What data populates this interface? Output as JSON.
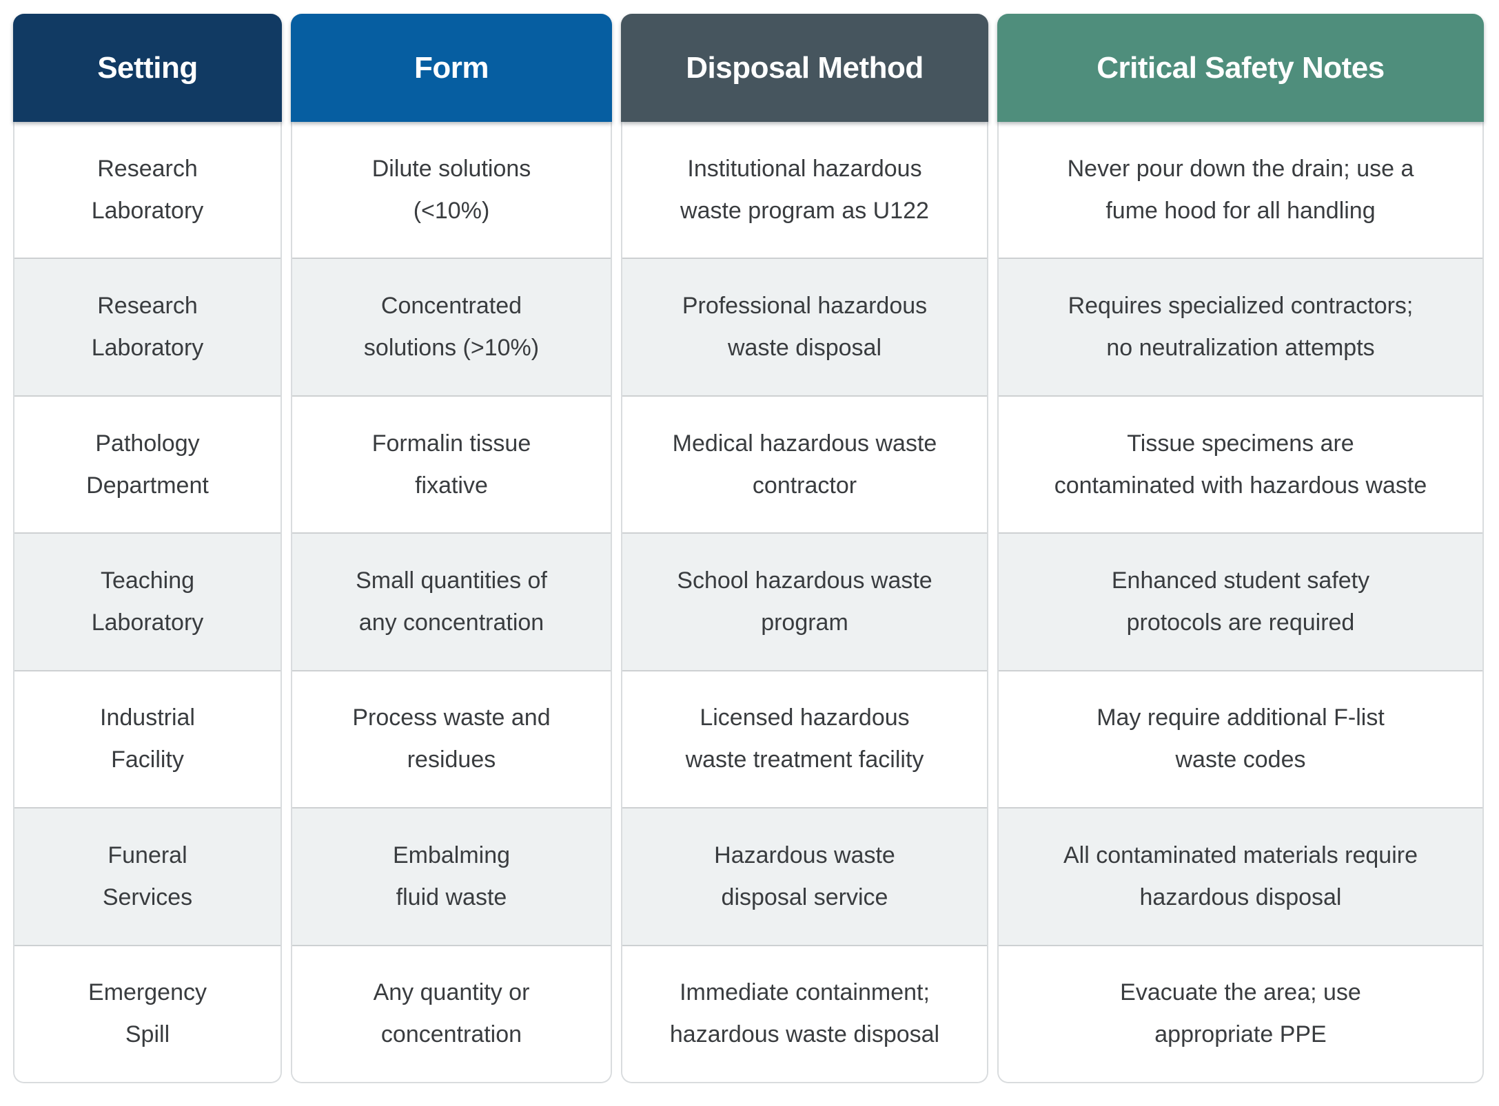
{
  "table": {
    "columns": [
      {
        "id": "setting",
        "header": "Setting",
        "header_bg": "#113a63",
        "cells": [
          "Research\nLaboratory",
          "Research\nLaboratory",
          "Pathology\nDepartment",
          "Teaching\nLaboratory",
          "Industrial\nFacility",
          "Funeral\nServices",
          "Emergency\nSpill"
        ]
      },
      {
        "id": "form",
        "header": "Form",
        "header_bg": "#065ea1",
        "cells": [
          "Dilute solutions\n(<10%)",
          "Concentrated\nsolutions (>10%)",
          "Formalin tissue\nfixative",
          "Small quantities of\nany concentration",
          "Process waste and\nresidues",
          "Embalming\nfluid waste",
          "Any quantity or\nconcentration"
        ]
      },
      {
        "id": "disposal-method",
        "header": "Disposal Method",
        "header_bg": "#46555e",
        "cells": [
          "Institutional hazardous\nwaste program as U122",
          "Professional hazardous\nwaste disposal",
          "Medical hazardous waste\ncontractor",
          "School hazardous waste\nprogram",
          "Licensed hazardous\nwaste treatment facility",
          "Hazardous waste\ndisposal service",
          "Immediate containment;\nhazardous waste disposal"
        ]
      },
      {
        "id": "critical-safety-notes",
        "header": "Critical Safety Notes",
        "header_bg": "#4f8e7c",
        "cells": [
          "Never pour down the drain; use a\nfume hood for all handling",
          "Requires specialized contractors;\nno neutralization attempts",
          "Tissue specimens are\ncontaminated with hazardous waste",
          "Enhanced student safety\nprotocols are required",
          "May require additional F-list\nwaste codes",
          "All contaminated materials require\nhazardous disposal",
          "Evacuate the area; use\nappropriate PPE"
        ]
      }
    ],
    "style": {
      "row_bg": "#ffffff",
      "row_alt_bg": "#eef1f2",
      "separator_color": "#cdd0d2",
      "body_border_color": "#d9dcde",
      "cell_text_color": "#393c3f",
      "header_text_color": "#ffffff"
    }
  }
}
